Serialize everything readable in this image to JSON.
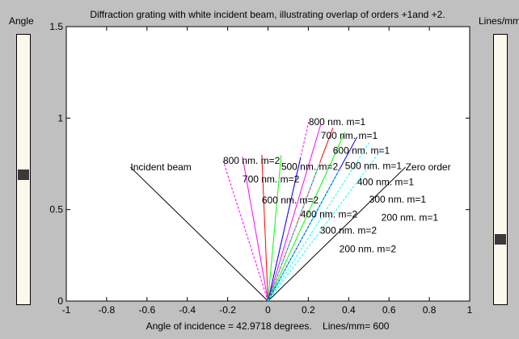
{
  "controls": {
    "angle_slider": {
      "label": "Angle",
      "value": 42.9718,
      "position_fraction": 0.48
    },
    "lines_slider": {
      "label": "Lines/mm",
      "value": 600,
      "position_fraction": 0.23
    }
  },
  "colors": {
    "background": "#c0c0c0",
    "slider_track": "#fbf8ec",
    "slider_thumb": "#3a3a3a"
  },
  "chart_data": {
    "type": "line",
    "title": "Diffraction grating with white incident beam, illustrating overlap of orders +1and +2.",
    "xlabel": "Angle of incidence = 42.9718 degrees.    Lines/mm= 600",
    "ylabel": "",
    "xlim": [
      -1,
      1
    ],
    "ylim": [
      0,
      1.5
    ],
    "xticks": [
      "-1",
      "-0.8",
      "-0.6",
      "-0.4",
      "-0.2",
      "0",
      "0.2",
      "0.4",
      "0.6",
      "0.8",
      "1"
    ],
    "yticks": [
      "0",
      "0.5",
      "1",
      "1.5"
    ],
    "grid": false,
    "origin": [
      0,
      0
    ],
    "series": [
      {
        "label": "Incident beam",
        "color": "#000000",
        "style": "solid",
        "end": [
          -0.6817,
          0.7316
        ]
      },
      {
        "label": "Zero order",
        "color": "#000000",
        "style": "solid",
        "end": [
          0.6817,
          0.7316
        ]
      },
      {
        "label": "800 nm. m=1",
        "color": "#ff00ff",
        "style": "dashed",
        "end": [
          0.2017,
          0.9794
        ]
      },
      {
        "label": "700 nm. m=1",
        "color": "#ff00ff",
        "style": "solid",
        "end": [
          0.2617,
          0.9651
        ]
      },
      {
        "label": "600 nm. m=1",
        "color": "#ff0000",
        "style": "solid",
        "end": [
          0.3217,
          0.9468
        ]
      },
      {
        "label": "500 nm. m=1",
        "color": "#00ff00",
        "style": "solid",
        "end": [
          0.3817,
          0.9243
        ]
      },
      {
        "label": "400 nm. m=1",
        "color": "#0000ff",
        "style": "solid",
        "end": [
          0.4417,
          0.8972
        ]
      },
      {
        "label": "300 nm. m=1",
        "color": "#00ffff",
        "style": "dashed",
        "end": [
          0.5017,
          0.865
        ]
      },
      {
        "label": "200 nm. m=1",
        "color": "#00ffff",
        "style": "dashed",
        "end": [
          0.5617,
          0.8273
        ]
      },
      {
        "label": "800 nm. m=2",
        "color": "#ff00ff",
        "style": "dashed",
        "end": [
          -0.2226,
          0.7684
        ]
      },
      {
        "label": "700 nm. m=2",
        "color": "#ff00ff",
        "style": "solid",
        "end": [
          -0.1266,
          0.7899
        ]
      },
      {
        "label": "600 nm. m=2",
        "color": "#ff0000",
        "style": "solid",
        "end": [
          -0.0306,
          0.7994
        ]
      },
      {
        "label": "500 nm. m=2",
        "color": "#00ff00",
        "style": "solid",
        "end": [
          0.0654,
          0.7973
        ]
      },
      {
        "label": "400 nm. m=2",
        "color": "#0000ff",
        "style": "solid",
        "end": [
          0.1614,
          0.7835
        ]
      },
      {
        "label": "300 nm. m=2",
        "color": "#00ffff",
        "style": "dashed",
        "end": [
          0.2574,
          0.7574
        ]
      },
      {
        "label": "200 nm. m=2",
        "color": "#00ffff",
        "style": "dashed",
        "end": [
          0.3534,
          0.7177
        ]
      }
    ]
  }
}
